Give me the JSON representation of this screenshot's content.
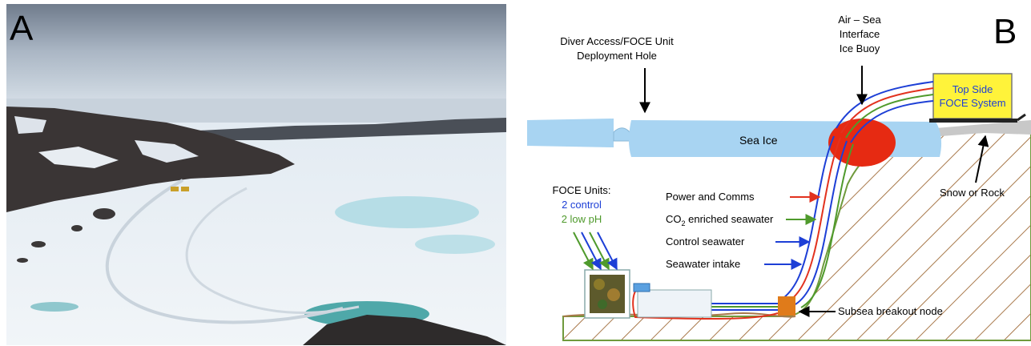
{
  "panel_a": {
    "letter": "A"
  },
  "panel_b": {
    "letter": "B",
    "labels": {
      "diver_access_line1": "Diver Access/FOCE Unit",
      "diver_access_line2": "Deployment Hole",
      "air_sea_line1": "Air – Sea",
      "air_sea_line2": "Interface",
      "air_sea_line3": "Ice Buoy",
      "top_side_line1": "Top Side",
      "top_side_line2": "FOCE System",
      "sea_ice": "Sea Ice",
      "snow_or_rock": "Snow or Rock",
      "foce_units": "FOCE Units:",
      "two_control": "2 control",
      "two_low_ph": "2 low pH",
      "power_comms": "Power and Comms",
      "co2_prefix": "CO",
      "co2_sub": "2",
      "co2_suffix": " enriched seawater",
      "control_seawater": "Control seawater",
      "seawater_intake": "Seawater intake",
      "subsea_node": "Subsea breakout node"
    },
    "colors": {
      "power": "#e2321e",
      "co2": "#4f9a2c",
      "control": "#1d3fd6",
      "intake": "#1d3fd6",
      "ice": "#a8d4f2",
      "buoy": "#e62a12",
      "topside_box": "#fff33a",
      "node": "#e07b1a",
      "seabed_hatch": "#a8784a",
      "slope_outline": "#6f9a3c",
      "snow": "#c8c8c8"
    }
  }
}
